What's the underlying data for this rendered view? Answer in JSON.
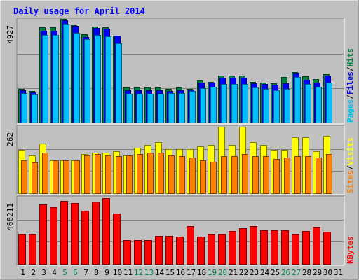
{
  "chart_data": {
    "type": "bar",
    "title": "Daily usage for April 2014",
    "days": [
      "1",
      "2",
      "3",
      "4",
      "5",
      "6",
      "7",
      "8",
      "9",
      "10",
      "11",
      "12",
      "13",
      "14",
      "15",
      "16",
      "17",
      "18",
      "19",
      "20",
      "21",
      "22",
      "23",
      "24",
      "25",
      "26",
      "27",
      "28",
      "29",
      "30",
      "31"
    ],
    "weekend_days": [
      "5",
      "6",
      "12",
      "13",
      "19",
      "20",
      "26",
      "27"
    ],
    "panels": [
      {
        "id": "hits-files-pages",
        "ymax_label": "4927",
        "ymax": 4927,
        "legend": [
          {
            "label": "Pages",
            "color": "#00c0ff"
          },
          {
            "label": "Files",
            "color": "#0000ff"
          },
          {
            "label": "Hits",
            "color": "#008040"
          }
        ],
        "series": [
          {
            "name": "Hits",
            "color": "#008040",
            "values": [
              1600,
              1500,
              4560,
              4560,
              4960,
              4660,
              4220,
              4600,
              4560,
              4140,
              1660,
              1660,
              1660,
              1660,
              1600,
              1660,
              1620,
              2000,
              1960,
              2260,
              2260,
              2260,
              1950,
              1900,
              1870,
              2180,
              2400,
              2200,
              2080,
              2320,
              0
            ]
          },
          {
            "name": "Files",
            "color": "#0000ff",
            "values": [
              1540,
              1440,
              4380,
              4380,
              4880,
              4620,
              4100,
              4520,
              4480,
              4140,
              1540,
              1540,
              1540,
              1540,
              1500,
              1540,
              1560,
              1920,
              1900,
              2160,
              2150,
              2150,
              1880,
              1860,
              1800,
              1880,
              2350,
              2060,
              1920,
              2240,
              0
            ]
          },
          {
            "name": "Pages",
            "color": "#00c0ff",
            "values": [
              1400,
              1350,
              4200,
              4200,
              4740,
              4300,
              4000,
              4200,
              4120,
              3800,
              1360,
              1360,
              1360,
              1360,
              1400,
              1400,
              1500,
              1640,
              1720,
              1860,
              1860,
              1860,
              1660,
              1620,
              1540,
              1600,
              2180,
              1860,
              1720,
              1920,
              0
            ]
          }
        ]
      },
      {
        "id": "visits-sites",
        "ymax_label": "262",
        "ymax": 262,
        "legend": [
          {
            "label": "Sites",
            "color": "#ff8000"
          },
          {
            "label": "Visits",
            "color": "#ffff00"
          }
        ],
        "series": [
          {
            "name": "Visits",
            "color": "#ffff00",
            "values": [
              170,
              150,
              195,
              130,
              130,
              130,
              155,
              160,
              160,
              165,
              150,
              180,
              190,
              200,
              175,
              175,
              175,
              185,
              190,
              262,
              190,
              262,
              200,
              190,
              170,
              170,
              220,
              220,
              165,
              225,
              0
            ]
          },
          {
            "name": "Sites",
            "color": "#ff8000",
            "values": [
              130,
              120,
              160,
              130,
              130,
              130,
              150,
              155,
              150,
              145,
              150,
              155,
              160,
              160,
              150,
              145,
              140,
              130,
              125,
              145,
              145,
              155,
              145,
              145,
              135,
              140,
              145,
              145,
              140,
              155,
              0
            ]
          }
        ]
      },
      {
        "id": "kbytes",
        "ymax_label": "466211",
        "ymax": 466211,
        "legend": [
          {
            "label": "KBytes",
            "color": "#ff0000"
          }
        ],
        "series": [
          {
            "name": "KBytes",
            "color": "#ff0000",
            "values": [
              210000,
              211000,
              416000,
              396000,
              443000,
              429000,
              372000,
              436000,
              460000,
              353000,
              168000,
              168000,
              169000,
              197000,
              194000,
              190000,
              266000,
              191000,
              211000,
              212000,
              233000,
              252000,
              265000,
              237000,
              234000,
              234000,
              213000,
              231000,
              262000,
              225000,
              0
            ]
          }
        ]
      }
    ],
    "grid": true
  },
  "colors": {
    "background": "#c0c0c0",
    "title": "#0000ff",
    "weekend_label": "#00804a",
    "weekday_label": "#000000",
    "gridline": "#808080"
  }
}
